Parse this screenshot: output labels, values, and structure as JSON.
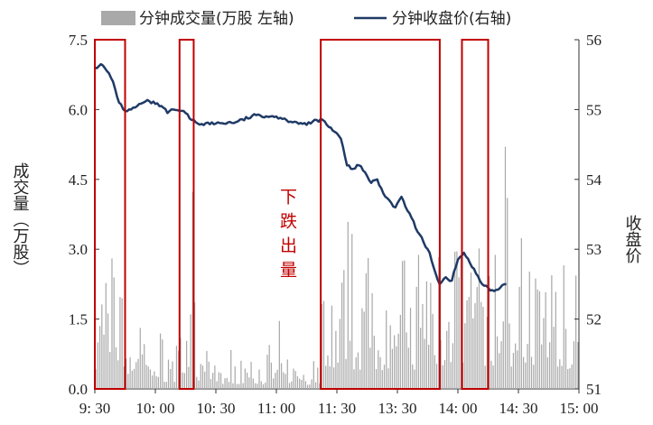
{
  "chart_data": {
    "type": "bar+line",
    "legend": {
      "volume_label": "分钟成交量(万股 左轴)",
      "price_label": "分钟收盘价(右轴)",
      "placement": "top-center"
    },
    "ylabel_left": "成交量（万股）",
    "ylabel_right": "收盘价",
    "annotation": "下跌出量",
    "x_ticks": [
      "9: 30",
      "10: 00",
      "10: 30",
      "11: 00",
      "11: 30",
      "13: 30",
      "14: 00",
      "14: 30",
      "15: 00"
    ],
    "y_left": {
      "ticks": [
        "0.0",
        "1.5",
        "3.0",
        "4.5",
        "6.0",
        "7.5"
      ],
      "ylim": [
        0,
        7.5
      ]
    },
    "y_right": {
      "ticks": [
        "51",
        "52",
        "53",
        "54",
        "55",
        "56"
      ],
      "ylim": [
        51,
        56
      ]
    },
    "x_range_minutes": [
      0,
      240
    ],
    "highlight_windows_minutes": [
      [
        0,
        15
      ],
      [
        42,
        49
      ],
      [
        112,
        171
      ],
      [
        182,
        195
      ]
    ],
    "close_price_keypoints": [
      [
        0,
        55.6
      ],
      [
        3,
        55.65
      ],
      [
        6,
        55.55
      ],
      [
        9,
        55.4
      ],
      [
        12,
        55.1
      ],
      [
        15,
        54.98
      ],
      [
        18,
        55.0
      ],
      [
        21,
        55.05
      ],
      [
        24,
        55.1
      ],
      [
        27,
        55.12
      ],
      [
        30,
        55.08
      ],
      [
        33,
        55.05
      ],
      [
        36,
        54.95
      ],
      [
        39,
        55.0
      ],
      [
        42,
        54.98
      ],
      [
        45,
        54.95
      ],
      [
        48,
        54.85
      ],
      [
        51,
        54.8
      ],
      [
        60,
        54.8
      ],
      [
        70,
        54.82
      ],
      [
        80,
        54.92
      ],
      [
        90,
        54.9
      ],
      [
        95,
        54.85
      ],
      [
        100,
        54.82
      ],
      [
        105,
        54.78
      ],
      [
        110,
        54.85
      ],
      [
        113,
        54.85
      ],
      [
        116,
        54.75
      ],
      [
        119,
        54.68
      ],
      [
        122,
        54.58
      ],
      [
        125,
        54.2
      ],
      [
        128,
        54.15
      ],
      [
        131,
        54.2
      ],
      [
        134,
        54.1
      ],
      [
        137,
        53.95
      ],
      [
        140,
        54.0
      ],
      [
        143,
        53.8
      ],
      [
        146,
        53.7
      ],
      [
        149,
        53.6
      ],
      [
        152,
        53.75
      ],
      [
        155,
        53.55
      ],
      [
        158,
        53.4
      ],
      [
        160,
        53.25
      ],
      [
        163,
        53.1
      ],
      [
        166,
        52.95
      ],
      [
        169,
        52.65
      ],
      [
        171,
        52.5
      ],
      [
        174,
        52.6
      ],
      [
        177,
        52.55
      ],
      [
        180,
        52.85
      ],
      [
        183,
        52.95
      ],
      [
        186,
        52.8
      ],
      [
        189,
        52.65
      ],
      [
        192,
        52.5
      ],
      [
        195,
        52.45
      ],
      [
        198,
        52.4
      ],
      [
        201,
        52.45
      ],
      [
        204,
        52.5
      ]
    ],
    "volume_summary": "per-minute bars (万股), 0–5.2; heavy in opening minutes and after 13:30"
  },
  "colors": {
    "bar": "#a9a9a9",
    "line": "#1f3a66",
    "highlight": "#c00000",
    "axis": "#333333"
  }
}
